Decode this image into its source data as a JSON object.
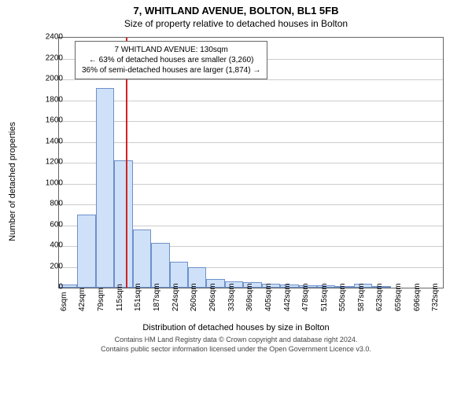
{
  "title": "7, WHITLAND AVENUE, BOLTON, BL1 5FB",
  "subtitle": "Size of property relative to detached houses in Bolton",
  "ylabel": "Number of detached properties",
  "xlabel": "Distribution of detached houses by size in Bolton",
  "footer_line1": "Contains HM Land Registry data © Crown copyright and database right 2024.",
  "footer_line2": "Contains public sector information licensed under the Open Government Licence v3.0.",
  "annotation": {
    "line1": "7 WHITLAND AVENUE: 130sqm",
    "line2": "← 63% of detached houses are smaller (3,260)",
    "line3": "36% of semi-detached houses are larger (1,874) →"
  },
  "chart": {
    "type": "histogram",
    "background_color": "#ffffff",
    "grid_color": "#cccccc",
    "axis_color": "#666666",
    "bar_fill": "#cfe1f8",
    "bar_stroke": "#6d90ca",
    "marker_color": "#d22222",
    "marker_x": 130,
    "ylim": [
      0,
      2400
    ],
    "ytick_step": 200,
    "xlim": [
      0,
      750
    ],
    "bar_bin_width": 36,
    "values": [
      30,
      700,
      1920,
      1220,
      560,
      430,
      250,
      200,
      80,
      60,
      50,
      40,
      30,
      25,
      20,
      10,
      40,
      10,
      0,
      0,
      0
    ],
    "xticks": [
      {
        "x": 6,
        "label": "6sqm"
      },
      {
        "x": 42,
        "label": "42sqm"
      },
      {
        "x": 79,
        "label": "79sqm"
      },
      {
        "x": 115,
        "label": "115sqm"
      },
      {
        "x": 151,
        "label": "151sqm"
      },
      {
        "x": 187,
        "label": "187sqm"
      },
      {
        "x": 224,
        "label": "224sqm"
      },
      {
        "x": 260,
        "label": "260sqm"
      },
      {
        "x": 296,
        "label": "296sqm"
      },
      {
        "x": 333,
        "label": "333sqm"
      },
      {
        "x": 369,
        "label": "369sqm"
      },
      {
        "x": 405,
        "label": "405sqm"
      },
      {
        "x": 442,
        "label": "442sqm"
      },
      {
        "x": 478,
        "label": "478sqm"
      },
      {
        "x": 515,
        "label": "515sqm"
      },
      {
        "x": 550,
        "label": "550sqm"
      },
      {
        "x": 587,
        "label": "587sqm"
      },
      {
        "x": 623,
        "label": "623sqm"
      },
      {
        "x": 659,
        "label": "659sqm"
      },
      {
        "x": 696,
        "label": "696sqm"
      },
      {
        "x": 732,
        "label": "732sqm"
      }
    ],
    "label_fontsize": 10,
    "title_fontsize": 13
  }
}
